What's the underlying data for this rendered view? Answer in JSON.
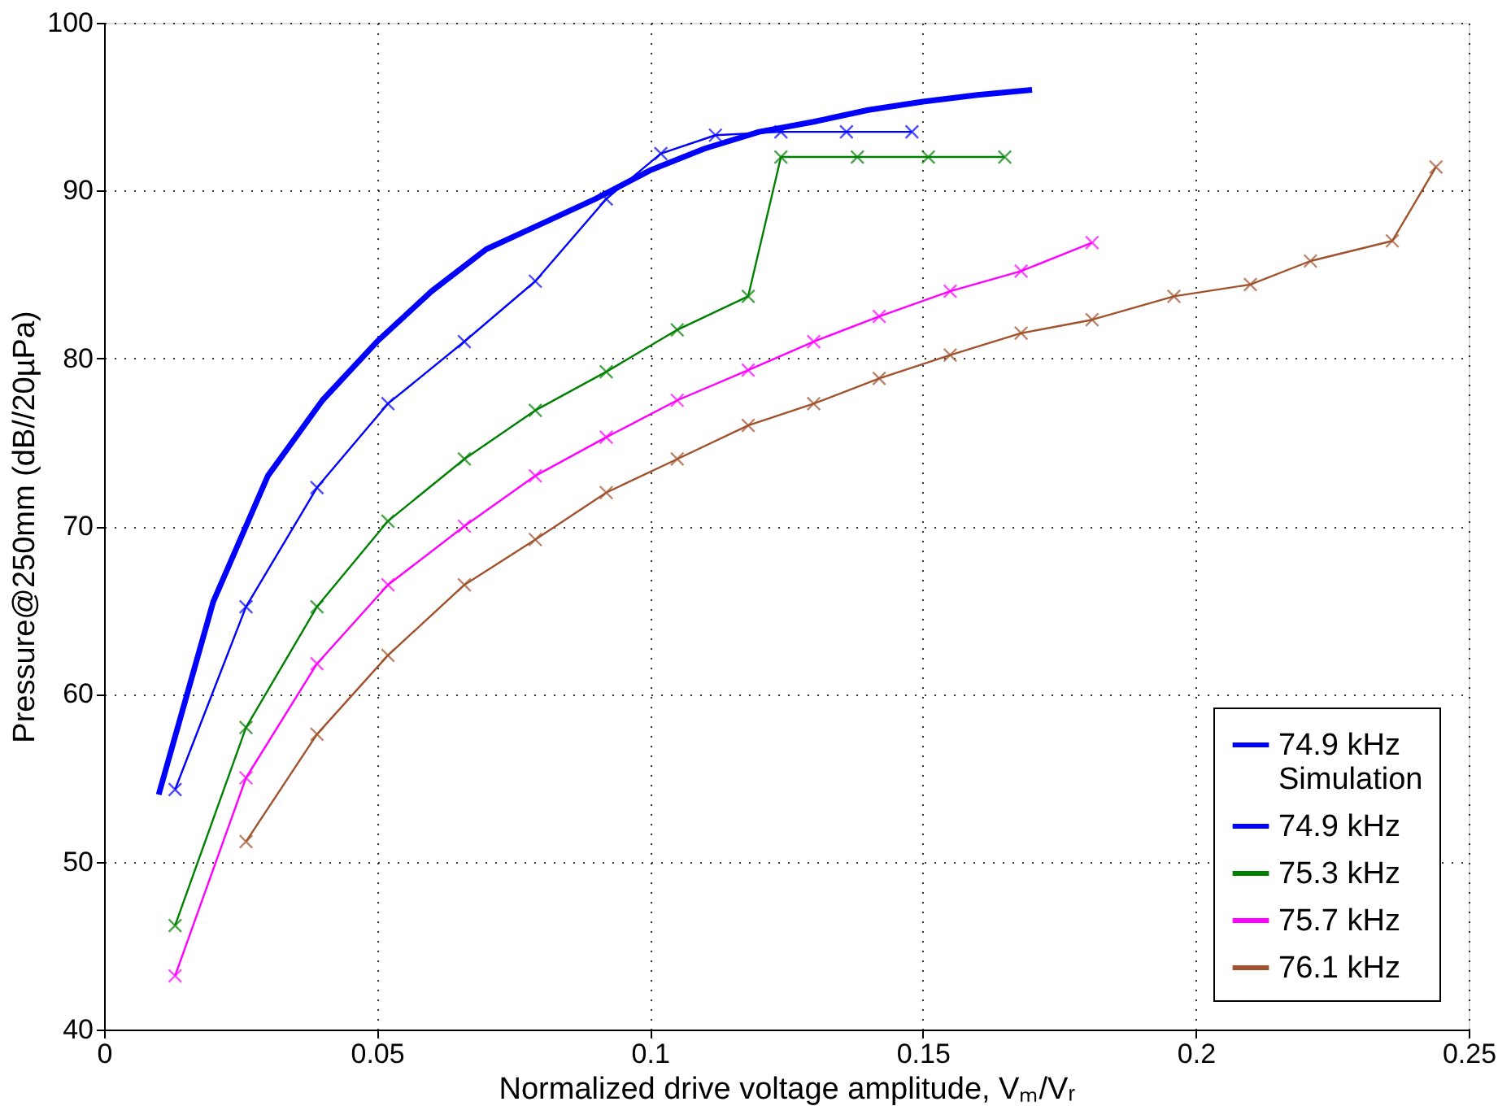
{
  "chart_data": {
    "type": "line",
    "xlabel": "Normalized drive voltage amplitude, Vₘ/Vᵣ",
    "ylabel": "Pressure@250mm (dB//20µPa)",
    "xlim": [
      0,
      0.25
    ],
    "xticks": [
      0,
      0.05,
      0.1,
      0.15,
      0.2,
      0.25
    ],
    "ylim": [
      40,
      100
    ],
    "yticks": [
      40,
      50,
      60,
      70,
      80,
      90,
      100
    ],
    "grid": true,
    "legend": "bottom right",
    "series": [
      {
        "name": "74.9 kHz\nSimulation",
        "color": "#0000ff",
        "marker": "none",
        "x": [
          0.01,
          0.02,
          0.03,
          0.04,
          0.05,
          0.06,
          0.07,
          0.08,
          0.09,
          0.1,
          0.11,
          0.12,
          0.13,
          0.14,
          0.15,
          0.16,
          0.17
        ],
        "values": [
          54,
          65.5,
          73,
          77.5,
          81,
          84,
          86.5,
          88,
          89.5,
          91.2,
          92.5,
          93.5,
          94.1,
          94.8,
          95.3,
          95.7,
          96
        ]
      },
      {
        "name": "74.9 kHz",
        "color": "#0000ff",
        "marker": "cross",
        "x": [
          0.013,
          0.026,
          0.039,
          0.052,
          0.066,
          0.079,
          0.092,
          0.102,
          0.112,
          0.124,
          0.136,
          0.148
        ],
        "values": [
          54.3,
          65.2,
          72.3,
          77.3,
          81,
          84.6,
          89.5,
          92.2,
          93.3,
          93.5,
          93.5,
          93.5
        ]
      },
      {
        "name": "75.3 kHz",
        "color": "#008000",
        "marker": "cross",
        "x": [
          0.013,
          0.026,
          0.039,
          0.052,
          0.066,
          0.079,
          0.092,
          0.105,
          0.118,
          0.124,
          0.138,
          0.151,
          0.165
        ],
        "values": [
          46.2,
          58,
          65.2,
          70.3,
          74,
          76.9,
          79.2,
          81.7,
          83.7,
          92,
          92,
          92,
          92
        ]
      },
      {
        "name": "75.7 kHz",
        "color": "#ff00ff",
        "marker": "cross",
        "x": [
          0.013,
          0.026,
          0.039,
          0.052,
          0.066,
          0.079,
          0.092,
          0.105,
          0.118,
          0.13,
          0.142,
          0.155,
          0.168,
          0.181
        ],
        "values": [
          43.2,
          55,
          61.8,
          66.5,
          70,
          73,
          75.3,
          77.5,
          79.3,
          81,
          82.5,
          84,
          85.2,
          86.9
        ]
      },
      {
        "name": "76.1 kHz",
        "color": "#a0522d",
        "marker": "cross",
        "x": [
          0.026,
          0.039,
          0.052,
          0.066,
          0.079,
          0.092,
          0.105,
          0.118,
          0.13,
          0.142,
          0.155,
          0.168,
          0.181,
          0.196,
          0.21,
          0.221,
          0.236,
          0.244
        ],
        "values": [
          51.2,
          57.6,
          62.3,
          66.5,
          69.2,
          72,
          74,
          76,
          77.3,
          78.8,
          80.2,
          81.5,
          82.3,
          83.7,
          84.4,
          85.8,
          87,
          91.4
        ]
      }
    ]
  }
}
